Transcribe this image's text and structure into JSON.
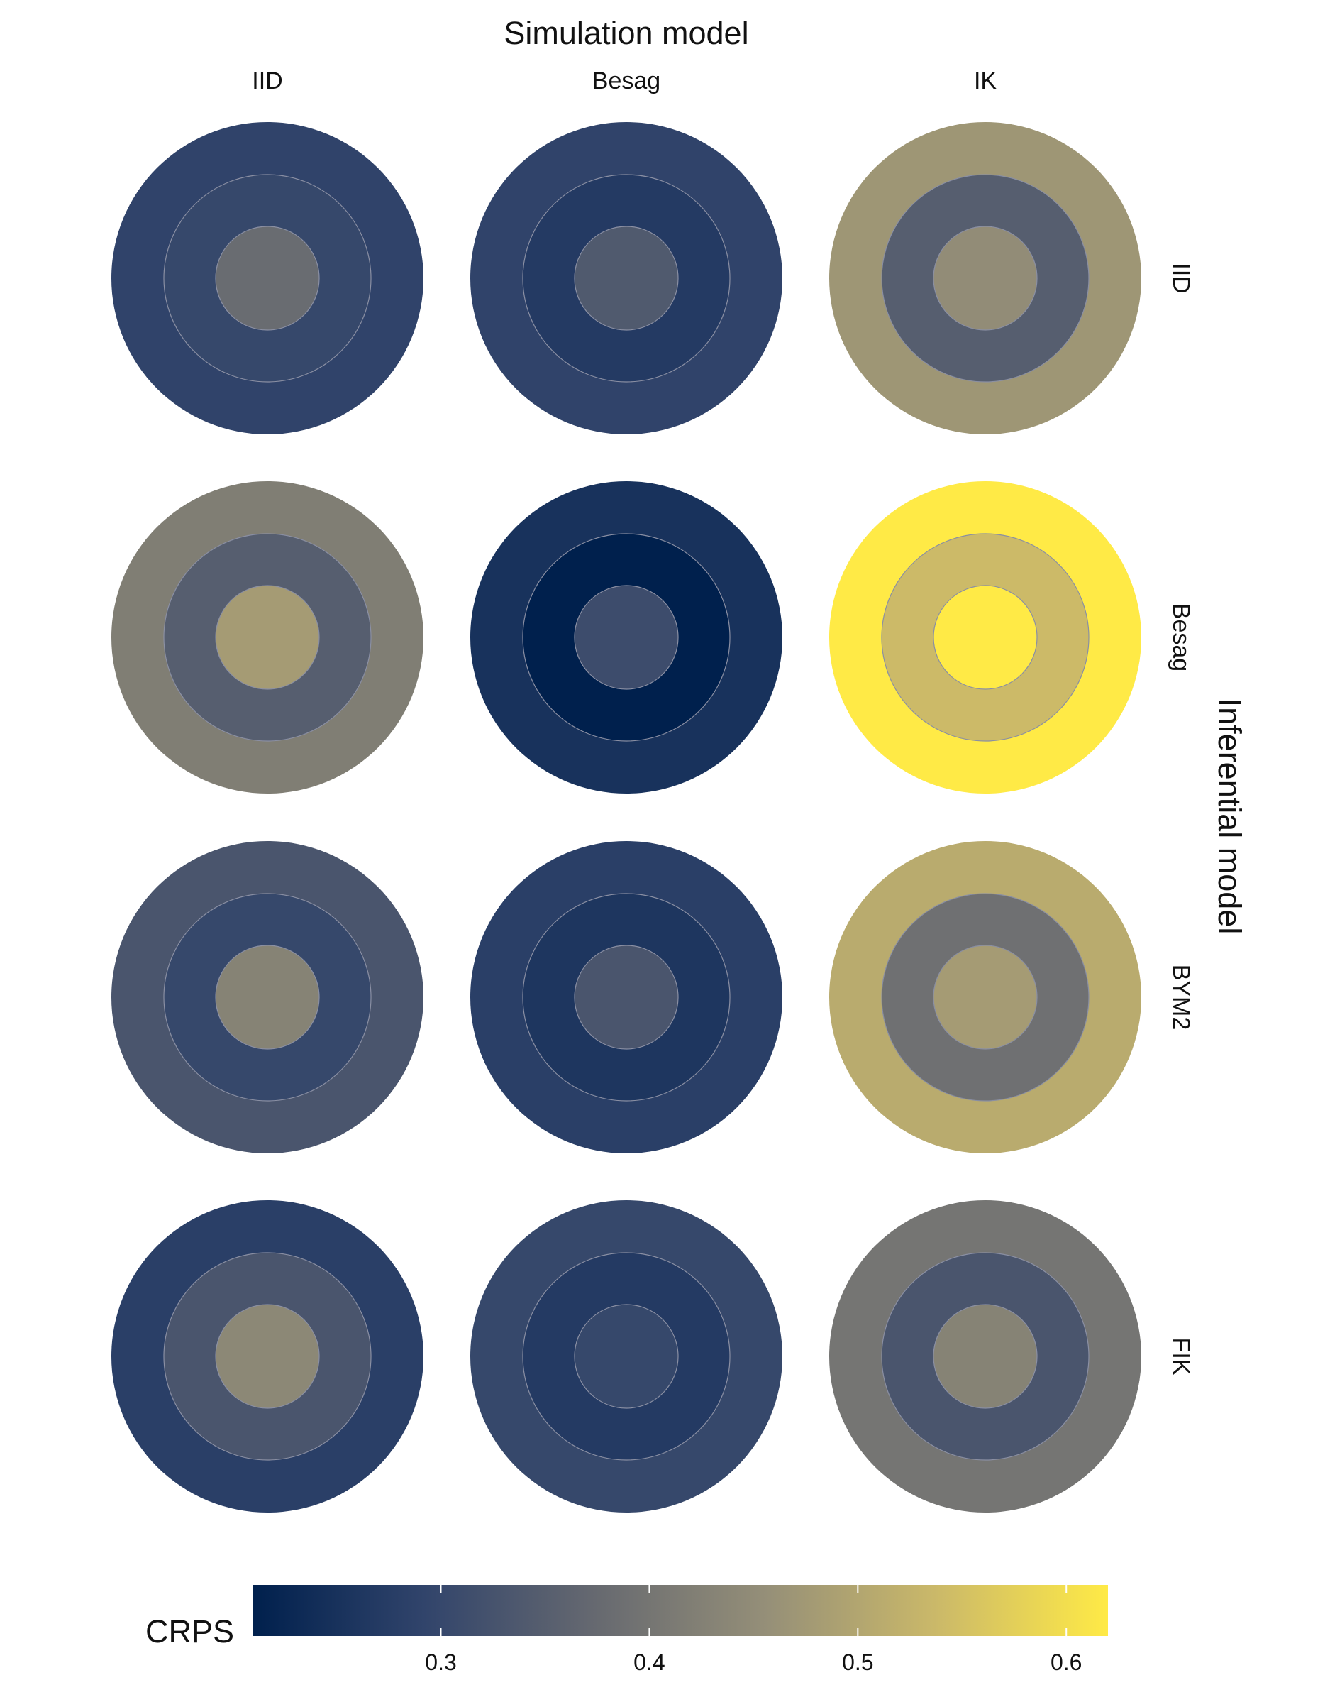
{
  "chart_data": {
    "type": "heatmap",
    "title": "Simulation model",
    "column_facet_title": "Simulation model",
    "row_facet_title": "Inferential model",
    "column_labels": [
      "IID",
      "Besag",
      "IK"
    ],
    "row_labels": [
      "IID",
      "Besag",
      "BYM2",
      "FIK"
    ],
    "rings": [
      "outer",
      "middle",
      "inner"
    ],
    "cells": [
      [
        {
          "outer": 0.29,
          "middle": 0.3,
          "inner": 0.38
        },
        {
          "outer": 0.29,
          "middle": 0.27,
          "inner": 0.34
        },
        {
          "outer": 0.47,
          "middle": 0.35,
          "inner": 0.45
        }
      ],
      [
        {
          "outer": 0.42,
          "middle": 0.35,
          "inner": 0.48
        },
        {
          "outer": 0.25,
          "middle": 0.21,
          "inner": 0.31
        },
        {
          "outer": 0.62,
          "middle": 0.54,
          "inner": 0.62
        }
      ],
      [
        {
          "outer": 0.33,
          "middle": 0.3,
          "inner": 0.43
        },
        {
          "outer": 0.28,
          "middle": 0.26,
          "inner": 0.33
        },
        {
          "outer": 0.51,
          "middle": 0.39,
          "inner": 0.48
        }
      ],
      [
        {
          "outer": 0.28,
          "middle": 0.33,
          "inner": 0.44
        },
        {
          "outer": 0.3,
          "middle": 0.27,
          "inner": 0.3
        },
        {
          "outer": 0.4,
          "middle": 0.33,
          "inner": 0.43
        }
      ]
    ],
    "legend": {
      "title": "CRPS",
      "min": 0.21,
      "max": 0.62,
      "ticks": [
        0.3,
        0.4,
        0.5,
        0.6
      ],
      "tick_labels": [
        "0.3",
        "0.4",
        "0.5",
        "0.6"
      ],
      "position": "bottom"
    },
    "colorscale": [
      "#00204d",
      "#31446b",
      "#666970",
      "#958f78",
      "#cbb969",
      "#ffea46"
    ],
    "ring_border_color": "#8a8fa3"
  }
}
